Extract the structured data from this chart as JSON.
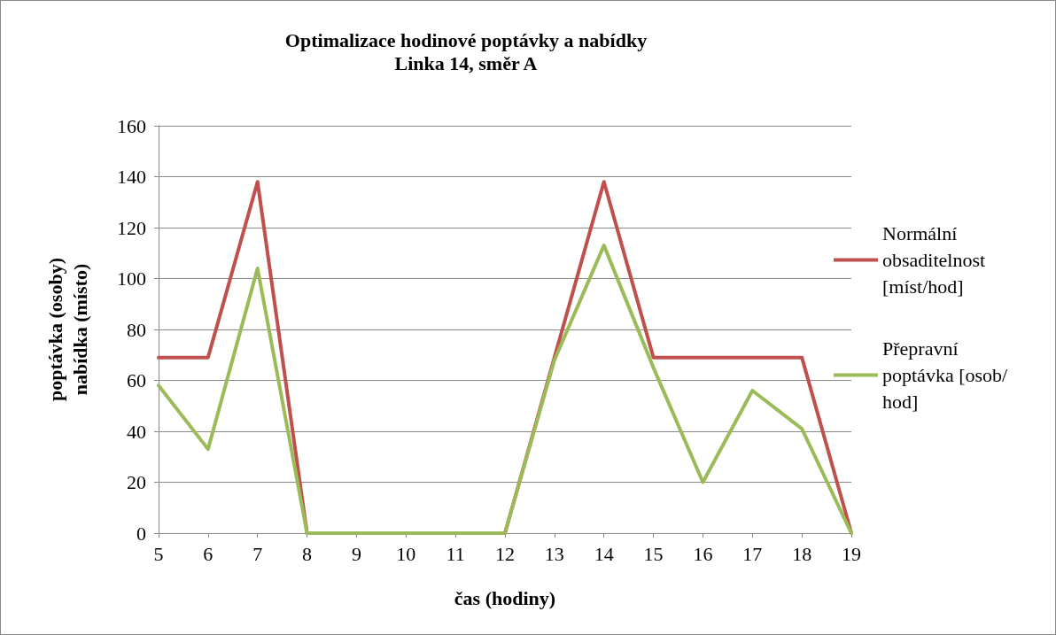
{
  "chart_data": {
    "type": "line",
    "title": "Optimalizace hodinové poptávky a nabídky",
    "subtitle": "Linka 14, směr A",
    "xlabel": "čas (hodiny)",
    "ylabel": "poptávka (osoby)\nnabídka (místo)",
    "categories": [
      "5",
      "6",
      "7",
      "8",
      "9",
      "10",
      "11",
      "12",
      "13",
      "14",
      "15",
      "16",
      "17",
      "18",
      "19"
    ],
    "series": [
      {
        "name": "Normální obsaditelnost [míst/hod]",
        "color": "#c0504d",
        "values": [
          69,
          69,
          138,
          0,
          0,
          0,
          0,
          0,
          69,
          138,
          69,
          69,
          69,
          69,
          0
        ]
      },
      {
        "name": "Přepravní poptávka [osob/hod]",
        "color": "#9bbb59",
        "values": [
          58,
          33,
          104,
          0,
          0,
          0,
          0,
          0,
          68,
          113,
          65,
          20,
          56,
          41,
          0
        ]
      }
    ],
    "ylim": [
      0,
      160
    ],
    "yticks": [
      0,
      20,
      40,
      60,
      80,
      100,
      120,
      140,
      160
    ],
    "grid": "y",
    "legend": "right",
    "marker": "none",
    "line_style": "solid"
  }
}
